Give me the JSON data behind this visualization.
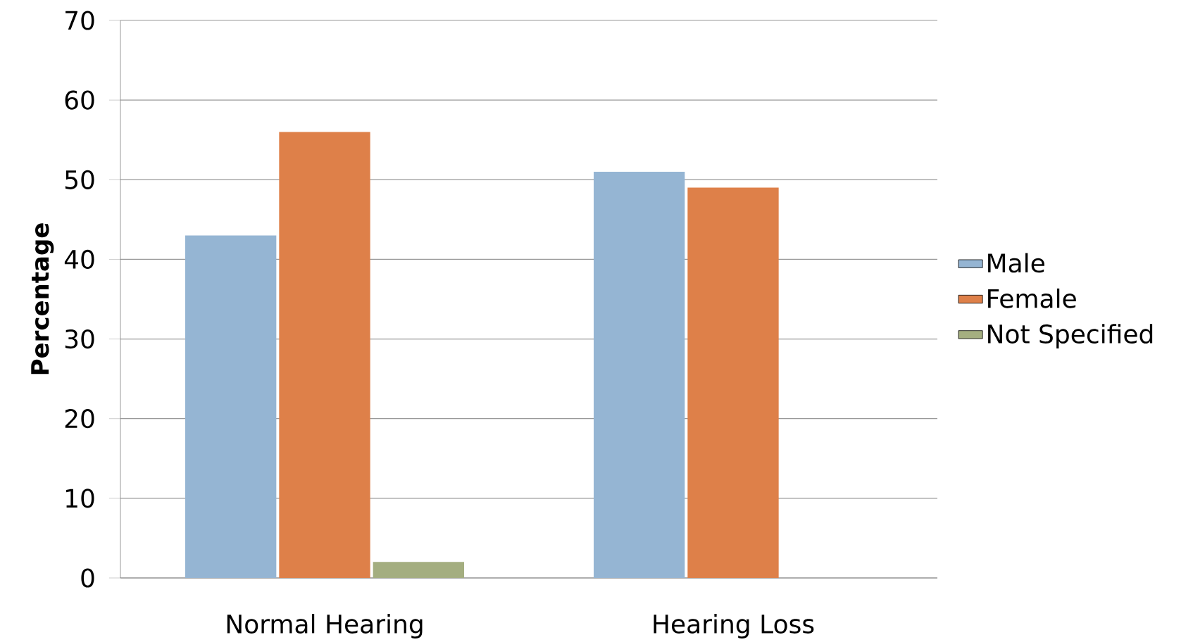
{
  "chart_data": {
    "type": "bar",
    "ylabel": "Percentage",
    "categories": [
      "Normal Hearing",
      "Hearing Loss"
    ],
    "series": [
      {
        "name": "Male",
        "color": "#95b5d3",
        "values": [
          43,
          51
        ]
      },
      {
        "name": "Female",
        "color": "#de8049",
        "values": [
          56,
          49
        ]
      },
      {
        "name": "Not Specified",
        "color": "#a4ae80",
        "values": [
          2,
          null
        ]
      }
    ],
    "ylim": [
      0,
      70
    ],
    "yticks": [
      0,
      10,
      20,
      30,
      40,
      50,
      60,
      70
    ],
    "grid": "y",
    "legend": "right"
  }
}
